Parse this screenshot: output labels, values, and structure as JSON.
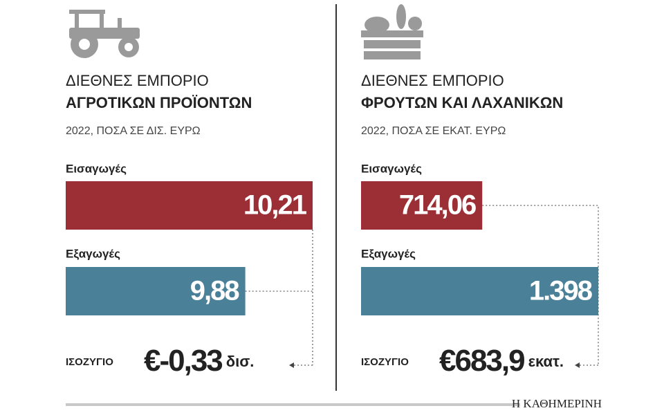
{
  "chart_data": [
    {
      "type": "hbar",
      "title": [
        "ΔΙΕΘΝΕΣ ΕΜΠΟΡΙΟ",
        "ΑΓΡΟΤΙΚΩΝ ΠΡΟΪΟΝΤΩΝ"
      ],
      "subtitle": "2022, ΠΟΣΑ ΣΕ ΔΙΣ. ΕΥΡΩ",
      "categories": [
        "Εισαγωγές",
        "Εξαγωγές"
      ],
      "values": [
        10.21,
        9.88
      ],
      "value_labels": [
        "10,21",
        "9,88"
      ],
      "colors": [
        "#9b2f35",
        "#4a8098"
      ],
      "xlim": [
        9,
        10.21
      ],
      "balance": {
        "label": "ΙΣΟΖΥΓΙΟ",
        "value": "€-0,33",
        "unit": "δισ."
      }
    },
    {
      "type": "hbar",
      "title": [
        "ΔΙΕΘΝΕΣ ΕΜΠΟΡΙΟ",
        "ΦΡΟΥΤΩΝ ΚΑΙ ΛΑΧΑΝΙΚΩΝ"
      ],
      "subtitle": "2022, ΠΟΣΑ ΣΕ ΕΚΑΤ. ΕΥΡΩ",
      "categories": [
        "Εισαγωγές",
        "Εξαγωγές"
      ],
      "values": [
        714.06,
        1398
      ],
      "value_labels": [
        "714,06",
        "1.398"
      ],
      "colors": [
        "#9b2f35",
        "#4a8098"
      ],
      "xlim": [
        0,
        1455
      ],
      "balance": {
        "label": "ΙΣΟΖΥΓΙΟ",
        "value": "€683,9",
        "unit": "εκατ."
      }
    }
  ],
  "footer": "Η ΚΑΘΗΜΕΡΙΝΗ"
}
